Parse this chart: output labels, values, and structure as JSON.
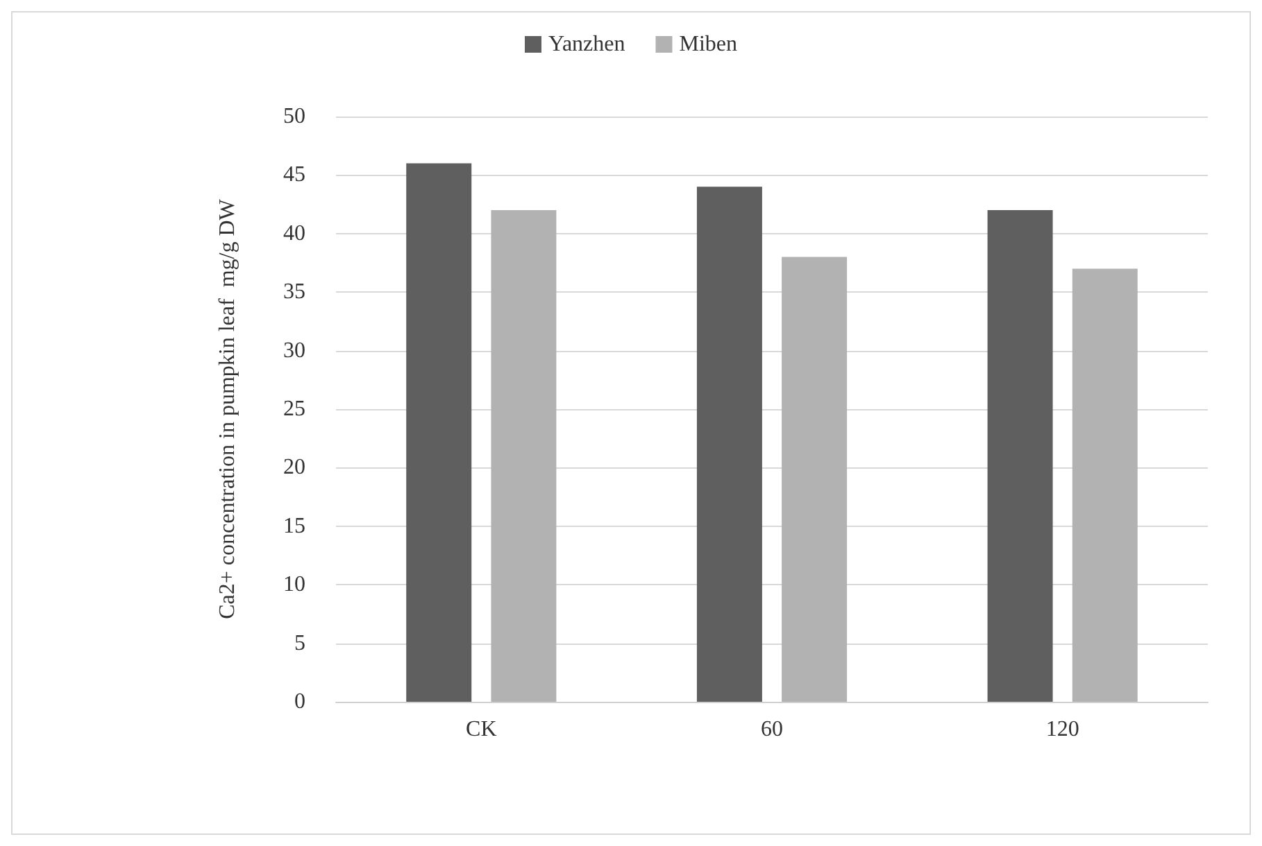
{
  "chart_data": {
    "type": "bar",
    "ylabel": "Ca2+ concentration in pumpkin leaf  mg/g DW",
    "categories": [
      "CK",
      "60",
      "120"
    ],
    "series": [
      {
        "name": "Yanzhen",
        "color": "#5f5f5f",
        "values": [
          46,
          44,
          42
        ]
      },
      {
        "name": "Miben",
        "color": "#b2b2b2",
        "values": [
          42,
          38,
          37
        ]
      }
    ],
    "ylim": [
      0,
      50
    ],
    "yticks": [
      0,
      5,
      10,
      15,
      20,
      25,
      30,
      35,
      40,
      45,
      50
    ],
    "grid": "y",
    "legend": "top"
  }
}
